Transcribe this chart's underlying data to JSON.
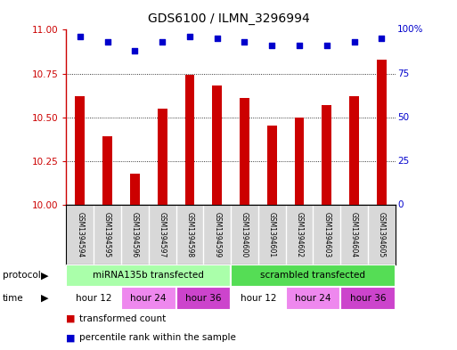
{
  "title": "GDS6100 / ILMN_3296994",
  "samples": [
    "GSM1394594",
    "GSM1394595",
    "GSM1394596",
    "GSM1394597",
    "GSM1394598",
    "GSM1394599",
    "GSM1394600",
    "GSM1394601",
    "GSM1394602",
    "GSM1394603",
    "GSM1394604",
    "GSM1394605"
  ],
  "bar_values": [
    10.62,
    10.39,
    10.18,
    10.55,
    10.74,
    10.68,
    10.61,
    10.45,
    10.5,
    10.57,
    10.62,
    10.83
  ],
  "percentile_values": [
    96,
    93,
    88,
    93,
    96,
    95,
    93,
    91,
    91,
    91,
    93,
    95
  ],
  "ylim_left": [
    10,
    11
  ],
  "ylim_right": [
    0,
    100
  ],
  "yticks_left": [
    10,
    10.25,
    10.5,
    10.75,
    11
  ],
  "yticks_right": [
    0,
    25,
    50,
    75,
    100
  ],
  "bar_color": "#cc0000",
  "dot_color": "#0000cc",
  "protocol_labels": [
    "miRNA135b transfected",
    "scrambled transfected"
  ],
  "protocol_colors": [
    "#aaffaa",
    "#55dd55"
  ],
  "protocol_ranges": [
    [
      0,
      6
    ],
    [
      6,
      12
    ]
  ],
  "time_labels": [
    "hour 12",
    "hour 24",
    "hour 36",
    "hour 12",
    "hour 24",
    "hour 36"
  ],
  "time_colors": [
    "#ffffff",
    "#ee88ee",
    "#cc44cc",
    "#ffffff",
    "#ee88ee",
    "#cc44cc"
  ],
  "time_ranges": [
    [
      0,
      2
    ],
    [
      2,
      4
    ],
    [
      4,
      6
    ],
    [
      6,
      8
    ],
    [
      8,
      10
    ],
    [
      10,
      12
    ]
  ],
  "legend_items": [
    "transformed count",
    "percentile rank within the sample"
  ],
  "legend_colors": [
    "#cc0000",
    "#0000cc"
  ],
  "background_color": "#ffffff",
  "plot_bg_color": "#ffffff",
  "sample_bg_color": "#d8d8d8"
}
